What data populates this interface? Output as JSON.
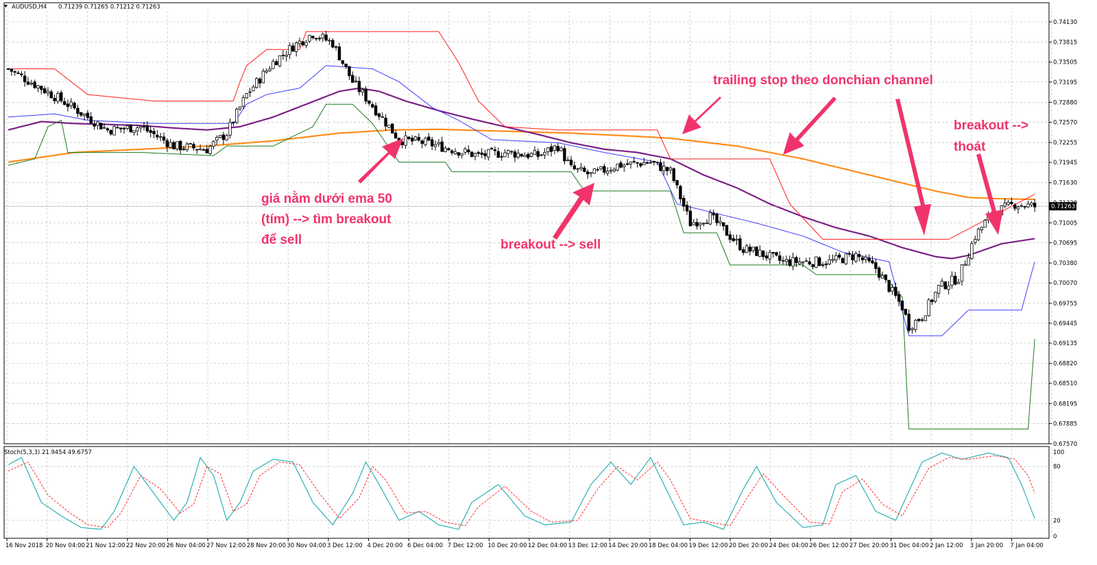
{
  "colors": {
    "background": "#ffffff",
    "grid": "#c8c8c8",
    "ema50": "#7b1f86",
    "ema200": "#ff8c1a",
    "donchian_upper": "#ff1a1a",
    "donchian_middle": "#3b3bff",
    "donchian_lower": "#1a7a1a",
    "stoch_main": "#30b0b0",
    "stoch_signal": "#ff2a2a",
    "annotation": "#f0346b",
    "price_tag_bg": "#000000",
    "price_tag_fg": "#ffffff"
  },
  "header": {
    "symbol": "AUDUSD,H4",
    "quote": "0.71239 0.71265 0.71212 0.71263"
  },
  "price_axis": {
    "ticks": [
      "0.74130",
      "0.73815",
      "0.73505",
      "0.73195",
      "0.72880",
      "0.72570",
      "0.72255",
      "0.71945",
      "0.71630",
      "0.71320",
      "0.71005",
      "0.70695",
      "0.70380",
      "0.70070",
      "0.69755",
      "0.69445",
      "0.69135",
      "0.68820",
      "0.68510",
      "0.68195",
      "0.67885",
      "0.67570"
    ],
    "current_price": "0.71263"
  },
  "stoch": {
    "label": "Stoch(5,3,3) 21.9454 49.6757",
    "ticks": [
      "100",
      "80",
      "20",
      "0"
    ]
  },
  "time_axis": {
    "labels": [
      "16 Nov 2018",
      "20 Nov 04:00",
      "21 Nov 12:00",
      "22 Nov 20:00",
      "26 Nov 04:00",
      "27 Nov 12:00",
      "28 Nov 20:00",
      "30 Nov 04:00",
      "3 Dec 12:00",
      "4 Dec 20:00",
      "6 Dec 04:00",
      "7 Dec 12:00",
      "10 Dec 20:00",
      "12 Dec 04:00",
      "13 Dec 12:00",
      "14 Dec 20:00",
      "18 Dec 04:00",
      "19 Dec 12:00",
      "20 Dec 20:00",
      "24 Dec 04:00",
      "26 Dec 12:00",
      "27 Dec 20:00",
      "31 Dec 04:00",
      "2 Jan 12:00",
      "3 Jan 20:00",
      "7 Jan 04:00"
    ]
  },
  "annotations": {
    "trailing": "trailing stop theo donchian channel",
    "ema_line1": "giá nằm dưới ema 50",
    "ema_line2": "(tím) --> tìm breakout",
    "ema_line3": "để sell",
    "breakout_sell": "breakout --> sell",
    "exit_line1": "breakout -->",
    "exit_line2": "thoát"
  },
  "chart_data": {
    "type": "line",
    "title": "AUDUSD,H4",
    "y_range": [
      0.6757,
      0.743
    ],
    "stoch_range": [
      0,
      100
    ],
    "bars": 250,
    "series": [
      {
        "name": "",
        "kind": "candles",
        "closes_keypoints": [
          [
            0,
            0.734
          ],
          [
            10,
            0.731
          ],
          [
            18,
            0.7285
          ],
          [
            30,
            0.7245
          ],
          [
            40,
            0.725
          ],
          [
            50,
            0.722
          ],
          [
            60,
            0.7215
          ],
          [
            66,
            0.724
          ],
          [
            72,
            0.73
          ],
          [
            80,
            0.735
          ],
          [
            86,
            0.7375
          ],
          [
            92,
            0.7395
          ],
          [
            98,
            0.738
          ],
          [
            104,
            0.732
          ],
          [
            112,
            0.727
          ],
          [
            118,
            0.723
          ],
          [
            126,
            0.7225
          ],
          [
            134,
            0.7215
          ],
          [
            142,
            0.7205
          ],
          [
            150,
            0.721
          ],
          [
            160,
            0.7205
          ],
          [
            166,
            0.722
          ],
          [
            170,
            0.7185
          ],
          [
            176,
            0.7175
          ],
          [
            184,
            0.719
          ],
          [
            194,
            0.7195
          ],
          [
            200,
            0.718
          ],
          [
            206,
            0.71
          ],
          [
            212,
            0.711
          ],
          [
            218,
            0.708
          ],
          [
            222,
            0.706
          ],
          [
            226,
            0.7055
          ],
          [
            234,
            0.704
          ],
          [
            242,
            0.704
          ],
          [
            248,
            0.704
          ],
          [
            256,
            0.705
          ],
          [
            262,
            0.703
          ],
          [
            266,
            0.7
          ],
          [
            270,
            0.697
          ],
          [
            272,
            0.694
          ],
          [
            276,
            0.6955
          ],
          [
            281,
            0.7
          ],
          [
            287,
            0.7015
          ],
          [
            292,
            0.708
          ],
          [
            297,
            0.7115
          ],
          [
            304,
            0.713
          ],
          [
            310,
            0.7126
          ]
        ]
      },
      {
        "name": "",
        "kind": "ema50",
        "keypoints": [
          [
            0,
            0.7245
          ],
          [
            10,
            0.7258
          ],
          [
            20,
            0.7255
          ],
          [
            40,
            0.7252
          ],
          [
            50,
            0.7248
          ],
          [
            60,
            0.7245
          ],
          [
            70,
            0.725
          ],
          [
            80,
            0.7265
          ],
          [
            90,
            0.7285
          ],
          [
            100,
            0.7305
          ],
          [
            106,
            0.731
          ],
          [
            112,
            0.7305
          ],
          [
            120,
            0.729
          ],
          [
            130,
            0.7275
          ],
          [
            140,
            0.7262
          ],
          [
            150,
            0.725
          ],
          [
            160,
            0.7238
          ],
          [
            170,
            0.7225
          ],
          [
            180,
            0.7215
          ],
          [
            190,
            0.721
          ],
          [
            200,
            0.72
          ],
          [
            210,
            0.7175
          ],
          [
            220,
            0.7155
          ],
          [
            230,
            0.713
          ],
          [
            240,
            0.711
          ],
          [
            250,
            0.7093
          ],
          [
            260,
            0.708
          ],
          [
            270,
            0.7062
          ],
          [
            280,
            0.7048
          ],
          [
            285,
            0.7045
          ],
          [
            290,
            0.705
          ],
          [
            300,
            0.7068
          ],
          [
            310,
            0.7076
          ]
        ]
      },
      {
        "name": "",
        "kind": "ema200",
        "keypoints": [
          [
            0,
            0.7195
          ],
          [
            20,
            0.721
          ],
          [
            40,
            0.7215
          ],
          [
            60,
            0.722
          ],
          [
            80,
            0.7228
          ],
          [
            100,
            0.724
          ],
          [
            116,
            0.7245
          ],
          [
            130,
            0.7246
          ],
          [
            150,
            0.7243
          ],
          [
            170,
            0.724
          ],
          [
            190,
            0.7235
          ],
          [
            200,
            0.7232
          ],
          [
            220,
            0.722
          ],
          [
            240,
            0.72
          ],
          [
            260,
            0.7175
          ],
          [
            280,
            0.715
          ],
          [
            290,
            0.714
          ],
          [
            300,
            0.7138
          ],
          [
            310,
            0.7137
          ]
        ]
      },
      {
        "name": "",
        "kind": "donchian_upper",
        "keypoints": [
          [
            0,
            0.734
          ],
          [
            14,
            0.734
          ],
          [
            24,
            0.73
          ],
          [
            44,
            0.729
          ],
          [
            68,
            0.729
          ],
          [
            70,
            0.732
          ],
          [
            72,
            0.7345
          ],
          [
            78,
            0.737
          ],
          [
            88,
            0.737
          ],
          [
            90,
            0.7398
          ],
          [
            130,
            0.7398
          ],
          [
            136,
            0.735
          ],
          [
            142,
            0.729
          ],
          [
            150,
            0.725
          ],
          [
            166,
            0.7245
          ],
          [
            196,
            0.7245
          ],
          [
            200,
            0.72
          ],
          [
            230,
            0.72
          ],
          [
            236,
            0.713
          ],
          [
            246,
            0.7075
          ],
          [
            284,
            0.7075
          ],
          [
            310,
            0.7145
          ]
        ]
      },
      {
        "name": "",
        "kind": "donchian_middle",
        "keypoints": [
          [
            0,
            0.7265
          ],
          [
            14,
            0.727
          ],
          [
            24,
            0.726
          ],
          [
            44,
            0.7255
          ],
          [
            68,
            0.7255
          ],
          [
            72,
            0.7285
          ],
          [
            78,
            0.73
          ],
          [
            88,
            0.731
          ],
          [
            96,
            0.7345
          ],
          [
            110,
            0.734
          ],
          [
            118,
            0.732
          ],
          [
            128,
            0.728
          ],
          [
            136,
            0.726
          ],
          [
            146,
            0.723
          ],
          [
            166,
            0.7225
          ],
          [
            180,
            0.721
          ],
          [
            196,
            0.7195
          ],
          [
            202,
            0.713
          ],
          [
            214,
            0.7115
          ],
          [
            226,
            0.71
          ],
          [
            240,
            0.708
          ],
          [
            252,
            0.7055
          ],
          [
            266,
            0.704
          ],
          [
            272,
            0.6925
          ],
          [
            282,
            0.6925
          ],
          [
            290,
            0.6965
          ],
          [
            306,
            0.6965
          ],
          [
            310,
            0.704
          ]
        ]
      },
      {
        "name": "",
        "kind": "donchian_lower",
        "keypoints": [
          [
            0,
            0.719
          ],
          [
            8,
            0.72
          ],
          [
            12,
            0.725
          ],
          [
            16,
            0.726
          ],
          [
            18,
            0.721
          ],
          [
            40,
            0.721
          ],
          [
            62,
            0.7205
          ],
          [
            66,
            0.722
          ],
          [
            80,
            0.722
          ],
          [
            92,
            0.725
          ],
          [
            96,
            0.7285
          ],
          [
            104,
            0.7285
          ],
          [
            110,
            0.7255
          ],
          [
            118,
            0.7195
          ],
          [
            132,
            0.7195
          ],
          [
            134,
            0.718
          ],
          [
            170,
            0.718
          ],
          [
            174,
            0.715
          ],
          [
            200,
            0.715
          ],
          [
            204,
            0.7085
          ],
          [
            214,
            0.7085
          ],
          [
            218,
            0.7035
          ],
          [
            240,
            0.7035
          ],
          [
            244,
            0.702
          ],
          [
            264,
            0.702
          ],
          [
            270,
            0.6985
          ],
          [
            272,
            0.678
          ],
          [
            308,
            0.678
          ],
          [
            310,
            0.692
          ]
        ]
      },
      {
        "name": "",
        "kind": "stoch_main",
        "keypoints": [
          [
            0,
            82
          ],
          [
            4,
            90
          ],
          [
            10,
            40
          ],
          [
            16,
            25
          ],
          [
            22,
            12
          ],
          [
            28,
            10
          ],
          [
            32,
            30
          ],
          [
            38,
            80
          ],
          [
            44,
            50
          ],
          [
            50,
            20
          ],
          [
            54,
            40
          ],
          [
            58,
            90
          ],
          [
            62,
            70
          ],
          [
            66,
            20
          ],
          [
            70,
            40
          ],
          [
            74,
            75
          ],
          [
            80,
            88
          ],
          [
            86,
            85
          ],
          [
            92,
            40
          ],
          [
            98,
            15
          ],
          [
            104,
            50
          ],
          [
            108,
            85
          ],
          [
            112,
            60
          ],
          [
            118,
            20
          ],
          [
            124,
            30
          ],
          [
            130,
            15
          ],
          [
            136,
            10
          ],
          [
            140,
            40
          ],
          [
            148,
            60
          ],
          [
            156,
            25
          ],
          [
            162,
            15
          ],
          [
            170,
            18
          ],
          [
            176,
            60
          ],
          [
            182,
            85
          ],
          [
            188,
            60
          ],
          [
            194,
            90
          ],
          [
            198,
            60
          ],
          [
            204,
            15
          ],
          [
            210,
            18
          ],
          [
            216,
            10
          ],
          [
            222,
            55
          ],
          [
            226,
            80
          ],
          [
            232,
            40
          ],
          [
            240,
            12
          ],
          [
            246,
            15
          ],
          [
            250,
            60
          ],
          [
            256,
            70
          ],
          [
            262,
            30
          ],
          [
            268,
            20
          ],
          [
            276,
            85
          ],
          [
            282,
            95
          ],
          [
            288,
            88
          ],
          [
            296,
            95
          ],
          [
            302,
            90
          ],
          [
            306,
            60
          ],
          [
            310,
            22
          ]
        ]
      },
      {
        "name": "",
        "kind": "stoch_signal",
        "keypoints": [
          [
            0,
            75
          ],
          [
            6,
            85
          ],
          [
            12,
            48
          ],
          [
            18,
            30
          ],
          [
            24,
            15
          ],
          [
            30,
            12
          ],
          [
            34,
            28
          ],
          [
            40,
            70
          ],
          [
            46,
            55
          ],
          [
            52,
            28
          ],
          [
            56,
            38
          ],
          [
            60,
            80
          ],
          [
            64,
            72
          ],
          [
            68,
            30
          ],
          [
            72,
            38
          ],
          [
            76,
            70
          ],
          [
            82,
            85
          ],
          [
            88,
            82
          ],
          [
            94,
            50
          ],
          [
            100,
            22
          ],
          [
            106,
            45
          ],
          [
            110,
            80
          ],
          [
            114,
            65
          ],
          [
            120,
            28
          ],
          [
            126,
            30
          ],
          [
            132,
            18
          ],
          [
            138,
            14
          ],
          [
            142,
            35
          ],
          [
            150,
            58
          ],
          [
            158,
            30
          ],
          [
            164,
            18
          ],
          [
            172,
            20
          ],
          [
            178,
            55
          ],
          [
            184,
            80
          ],
          [
            190,
            65
          ],
          [
            196,
            85
          ],
          [
            200,
            65
          ],
          [
            206,
            22
          ],
          [
            212,
            18
          ],
          [
            218,
            14
          ],
          [
            224,
            50
          ],
          [
            228,
            72
          ],
          [
            234,
            48
          ],
          [
            242,
            18
          ],
          [
            248,
            16
          ],
          [
            252,
            52
          ],
          [
            258,
            66
          ],
          [
            264,
            38
          ],
          [
            270,
            25
          ],
          [
            278,
            78
          ],
          [
            284,
            90
          ],
          [
            290,
            88
          ],
          [
            298,
            92
          ],
          [
            304,
            88
          ],
          [
            308,
            70
          ],
          [
            310,
            50
          ]
        ]
      }
    ]
  }
}
